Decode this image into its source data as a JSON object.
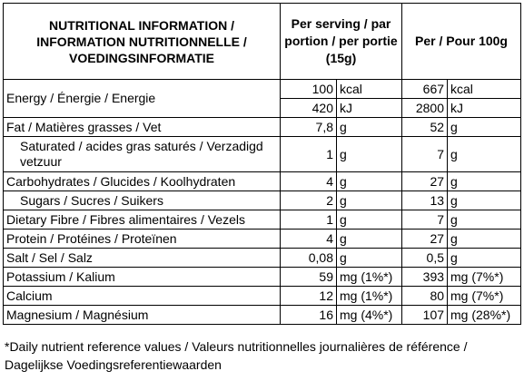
{
  "header": {
    "nutrition": "NUTRITIONAL INFORMATION / INFORMATION NUTRITIONNELLE / VOEDINGSINFORMATIE",
    "per_serving": "Per serving / par portion / per portie (15g)",
    "per_100": "Per / Pour 100g"
  },
  "energy": {
    "label": "Energy / Énergie / Energie",
    "kcal": {
      "serving": "100",
      "per100": "667",
      "unit": "kcal"
    },
    "kj": {
      "serving": "420",
      "per100": "2800",
      "unit": "kJ"
    }
  },
  "rows": [
    {
      "label": "Fat / Matières grasses / Vet",
      "serving": "7,8",
      "serving_unit": "g",
      "per100": "52",
      "per100_unit": "g"
    },
    {
      "label": "Saturated / acides gras saturés / Verzadigd vetzuur",
      "serving": "1",
      "serving_unit": "g",
      "per100": "7",
      "per100_unit": "g"
    },
    {
      "label": "Carbohydrates / Glucides / Koolhydraten",
      "serving": "4",
      "serving_unit": "g",
      "per100": "27",
      "per100_unit": "g"
    },
    {
      "label": "Sugars / Sucres / Suikers",
      "serving": "2",
      "serving_unit": "g",
      "per100": "13",
      "per100_unit": "g"
    },
    {
      "label": "Dietary Fibre / Fibres alimentaires / Vezels",
      "serving": "1",
      "serving_unit": "g",
      "per100": "7",
      "per100_unit": "g"
    },
    {
      "label": "Protein / Protéines / Proteïnen",
      "serving": "4",
      "serving_unit": "g",
      "per100": "27",
      "per100_unit": "g"
    },
    {
      "label": "Salt / Sel / Salz",
      "serving": "0,08",
      "serving_unit": "g",
      "per100": "0,5",
      "per100_unit": "g"
    },
    {
      "label": "Potassium / Kalium",
      "serving": "59",
      "serving_unit": "mg (1%*)",
      "per100": "393",
      "per100_unit": "mg (7%*)"
    },
    {
      "label": "Calcium",
      "serving": "12",
      "serving_unit": "mg (1%*)",
      "per100": "80",
      "per100_unit": "mg (7%*)"
    },
    {
      "label": "Magnesium / Magnésium",
      "serving": "16",
      "serving_unit": "mg (4%*)",
      "per100": "107",
      "per100_unit": "mg (28%*)"
    }
  ],
  "footnote": "*Daily nutrient reference values / Valeurs nutritionnelles journalières de référence / Dagelijkse Voedingsreferentiewaarden"
}
